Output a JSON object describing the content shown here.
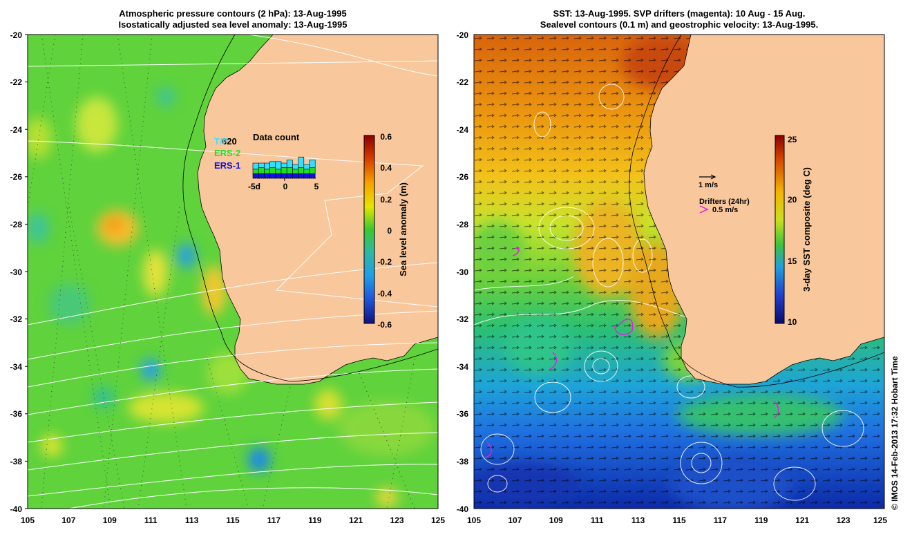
{
  "left_panel": {
    "title_line1": "Atmospheric pressure contours (2 hPa): 13-Aug-1995",
    "title_line2": "Isostatically adjusted sea level anomaly: 13-Aug-1995",
    "lat_labels": [
      "-20",
      "-22",
      "-24",
      "-26",
      "-28",
      "-30",
      "-32",
      "-34",
      "-36",
      "-38",
      "-40"
    ],
    "lon_labels": [
      "105",
      "107",
      "109",
      "111",
      "113",
      "115",
      "117",
      "119",
      "121",
      "123",
      "125"
    ],
    "colorbar": {
      "label": "Sea level anomaly (m)",
      "ticks": [
        "0.6",
        "0.4",
        "0.2",
        "0",
        "-0.2",
        "-0.4",
        "-0.6"
      ],
      "min": -0.6,
      "max": 0.6
    },
    "data_count": {
      "title": "Data count",
      "value": "620",
      "legend": [
        "T/P",
        "ERS-2",
        "ERS-1"
      ],
      "legend_colors": [
        "#33e0ff",
        "#22dd22",
        "#1111dd"
      ],
      "x_ticks": [
        "-5d",
        "0",
        "5"
      ],
      "bars": [
        {
          "ers1": 3,
          "ers2": 3,
          "tp": 4
        },
        {
          "ers1": 3,
          "ers2": 4,
          "tp": 3
        },
        {
          "ers1": 3,
          "ers2": 3,
          "tp": 4
        },
        {
          "ers1": 3,
          "ers2": 4,
          "tp": 4
        },
        {
          "ers1": 3,
          "ers2": 3,
          "tp": 5
        },
        {
          "ers1": 3,
          "ers2": 4,
          "tp": 3
        },
        {
          "ers1": 3,
          "ers2": 4,
          "tp": 5
        },
        {
          "ers1": 3,
          "ers2": 3,
          "tp": 3
        },
        {
          "ers1": 3,
          "ers2": 4,
          "tp": 7
        },
        {
          "ers1": 3,
          "ers2": 3,
          "tp": 3
        },
        {
          "ers1": 3,
          "ers2": 4,
          "tp": 5
        }
      ]
    }
  },
  "right_panel": {
    "title_line1": "SST: 13-Aug-1995. SVP drifters (magenta): 10 Aug - 15 Aug.",
    "title_line2": "Sealevel contours (0.1 m) and geostrophic velocity: 13-Aug-1995.",
    "lat_labels": [
      "-20",
      "-22",
      "-24",
      "-26",
      "-28",
      "-30",
      "-32",
      "-34",
      "-36",
      "-38",
      "-40"
    ],
    "lon_labels": [
      "105",
      "107",
      "109",
      "111",
      "113",
      "115",
      "117",
      "119",
      "121",
      "123",
      "125"
    ],
    "colorbar": {
      "label": "3-day SST composite (deg C)",
      "ticks": [
        "25",
        "20",
        "15",
        "10"
      ],
      "min": 10,
      "max": 25
    },
    "velocity_scale_label": "1 m/s",
    "drifters_label": "Drifters (24hr)",
    "drifter_speed_label": "0.5 m/s"
  },
  "credit": "© IMOS 14-Feb-2013 17:32 Hobart Time",
  "colors": {
    "land": "#f8c79c",
    "drifter": "#dd22dd",
    "vector": "#000000"
  }
}
